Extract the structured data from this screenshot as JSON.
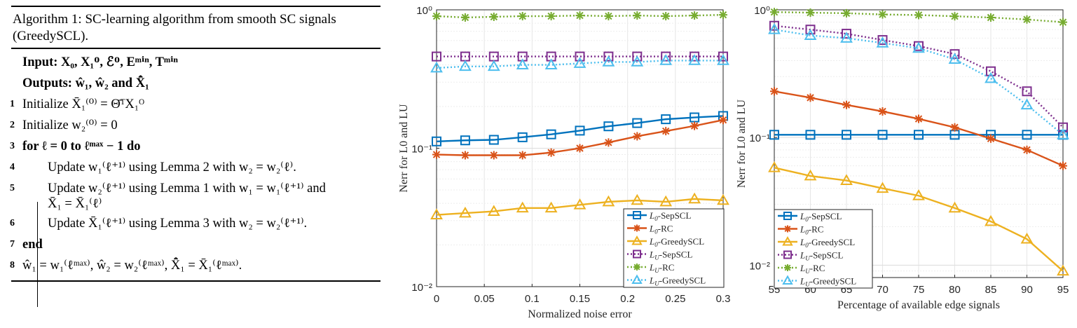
{
  "algorithm": {
    "title": "Algorithm 1: SC-learning algorithm from smooth SC signals (GreedySCL).",
    "input": "Input: X₀, X₁ᴼ, ℰᴼ, Eᵐⁱⁿ, Tᵐⁱⁿ",
    "outputs": "Outputs: ŵ₁, ŵ₂ and X̂̄₁",
    "lines": [
      {
        "num": "1",
        "text": "Initialize X̄₁⁽⁰⁾ = Θ̄ᵀX₁ᴼ"
      },
      {
        "num": "2",
        "text": "Initialize w₂⁽⁰⁾ = 0"
      },
      {
        "num": "3",
        "text": "for ℓ = 0 to ℓᵐᵃˣ − 1 do"
      },
      {
        "num": "4",
        "text": "Update w₁⁽ℓ⁺¹⁾ using Lemma  2 with w₂ = w₂⁽ℓ⁾."
      },
      {
        "num": "5",
        "text": "Update w₂⁽ℓ⁺¹⁾ using Lemma  1 with w₁ = w₁⁽ℓ⁺¹⁾ and",
        "text2": "X̄₁ = X̄₁⁽ℓ⁾"
      },
      {
        "num": "6",
        "text": "Update X̄₁⁽ℓ⁺¹⁾ using Lemma 3 with w₂ = w₂⁽ℓ⁺¹⁾."
      },
      {
        "num": "7",
        "text": "end"
      },
      {
        "num": "8",
        "text": "ŵ₁ = w₁⁽ℓᵐᵃˣ⁾, ŵ₂ = w₂⁽ℓᵐᵃˣ⁾, X̂̄₁ = X̄₁⁽ℓᵐᵃˣ⁾."
      }
    ]
  },
  "chart_data": [
    {
      "type": "line",
      "yscale": "log",
      "xlabel": "Normalized noise error",
      "ylabel": "Nerr for L0 and LU",
      "xlim": [
        0,
        0.3
      ],
      "ylim": [
        0.01,
        1
      ],
      "xticks": [
        0,
        0.05,
        0.1,
        0.15,
        0.2,
        0.25,
        0.3
      ],
      "xtick_labels": [
        "0",
        "0.05",
        "0.1",
        "0.15",
        "0.2",
        "0.25",
        "0.3"
      ],
      "yticks": [
        0.01,
        0.1,
        1
      ],
      "ytick_labels": [
        "10⁻²",
        "10⁻¹",
        "10⁰"
      ],
      "legend_position": "bottom-right",
      "x": [
        0,
        0.03,
        0.06,
        0.09,
        0.12,
        0.15,
        0.18,
        0.21,
        0.24,
        0.27,
        0.3
      ],
      "series": [
        {
          "name": "L0-SepSCL",
          "sub": "0",
          "rest": "-SepSCL",
          "color": "#0072BD",
          "marker": "square",
          "dash": "solid",
          "values": [
            0.112,
            0.114,
            0.115,
            0.12,
            0.126,
            0.134,
            0.144,
            0.152,
            0.162,
            0.167,
            0.171
          ]
        },
        {
          "name": "L0-RC",
          "sub": "0",
          "rest": "-RC",
          "color": "#D95319",
          "marker": "asterisk",
          "dash": "solid",
          "values": [
            0.09,
            0.089,
            0.089,
            0.089,
            0.093,
            0.1,
            0.11,
            0.122,
            0.133,
            0.145,
            0.16
          ]
        },
        {
          "name": "L0-GreedySCL",
          "sub": "0",
          "rest": "-GreedySCL",
          "color": "#EDB120",
          "marker": "triangle",
          "dash": "solid",
          "values": [
            0.033,
            0.034,
            0.035,
            0.037,
            0.037,
            0.039,
            0.041,
            0.042,
            0.041,
            0.043,
            0.042
          ]
        },
        {
          "name": "LU-SepSCL",
          "sub": "U",
          "rest": "-SepSCL",
          "color": "#7E2F8E",
          "marker": "square",
          "dash": "dotted",
          "values": [
            0.46,
            0.46,
            0.46,
            0.46,
            0.46,
            0.46,
            0.46,
            0.46,
            0.46,
            0.46,
            0.46
          ]
        },
        {
          "name": "LU-RC",
          "sub": "U",
          "rest": "-RC",
          "color": "#77AC30",
          "marker": "asterisk",
          "dash": "dotted",
          "values": [
            0.9,
            0.88,
            0.89,
            0.9,
            0.9,
            0.91,
            0.9,
            0.91,
            0.9,
            0.91,
            0.92
          ]
        },
        {
          "name": "LU-GreedySCL",
          "sub": "U",
          "rest": "-GreedySCL",
          "color": "#4DBEEE",
          "marker": "triangle",
          "dash": "dotted",
          "values": [
            0.38,
            0.39,
            0.39,
            0.4,
            0.4,
            0.41,
            0.42,
            0.42,
            0.43,
            0.43,
            0.43
          ]
        }
      ]
    },
    {
      "type": "line",
      "yscale": "log",
      "xlabel": "Percentage of available edge signals",
      "ylabel": "Nerr for L0 and LU",
      "xlim": [
        55,
        95
      ],
      "ylim": [
        0.008,
        1
      ],
      "xticks": [
        55,
        60,
        65,
        70,
        75,
        80,
        85,
        90,
        95
      ],
      "xtick_labels": [
        "55",
        "60",
        "65",
        "70",
        "75",
        "80",
        "85",
        "90",
        "95"
      ],
      "yticks": [
        0.01,
        0.1,
        1
      ],
      "ytick_labels": [
        "10⁻²",
        "10⁻¹",
        "10⁰"
      ],
      "legend_position": "bottom-left",
      "x": [
        55,
        60,
        65,
        70,
        75,
        80,
        85,
        90,
        95
      ],
      "series": [
        {
          "name": "L0-SepSCL",
          "sub": "0",
          "rest": "-SepSCL",
          "color": "#0072BD",
          "marker": "square",
          "dash": "solid",
          "values": [
            0.105,
            0.105,
            0.105,
            0.105,
            0.105,
            0.105,
            0.105,
            0.105,
            0.105
          ]
        },
        {
          "name": "L0-RC",
          "sub": "0",
          "rest": "-RC",
          "color": "#D95319",
          "marker": "asterisk",
          "dash": "solid",
          "values": [
            0.23,
            0.205,
            0.18,
            0.16,
            0.14,
            0.12,
            0.098,
            0.08,
            0.06
          ]
        },
        {
          "name": "L0-GreedySCL",
          "sub": "0",
          "rest": "-GreedySCL",
          "color": "#EDB120",
          "marker": "triangle",
          "dash": "solid",
          "values": [
            0.058,
            0.05,
            0.046,
            0.04,
            0.035,
            0.028,
            0.022,
            0.016,
            0.009
          ]
        },
        {
          "name": "LU-SepSCL",
          "sub": "U",
          "rest": "-SepSCL",
          "color": "#7E2F8E",
          "marker": "square",
          "dash": "dotted",
          "values": [
            0.75,
            0.7,
            0.65,
            0.58,
            0.52,
            0.45,
            0.33,
            0.23,
            0.12
          ]
        },
        {
          "name": "LU-RC",
          "sub": "U",
          "rest": "-RC",
          "color": "#77AC30",
          "marker": "asterisk",
          "dash": "dotted",
          "values": [
            0.96,
            0.95,
            0.94,
            0.92,
            0.91,
            0.89,
            0.87,
            0.84,
            0.8
          ]
        },
        {
          "name": "LU-GreedySCL",
          "sub": "U",
          "rest": "-GreedySCL",
          "color": "#4DBEEE",
          "marker": "triangle",
          "dash": "dotted",
          "values": [
            0.7,
            0.63,
            0.6,
            0.55,
            0.5,
            0.41,
            0.29,
            0.18,
            0.105
          ]
        }
      ]
    }
  ]
}
